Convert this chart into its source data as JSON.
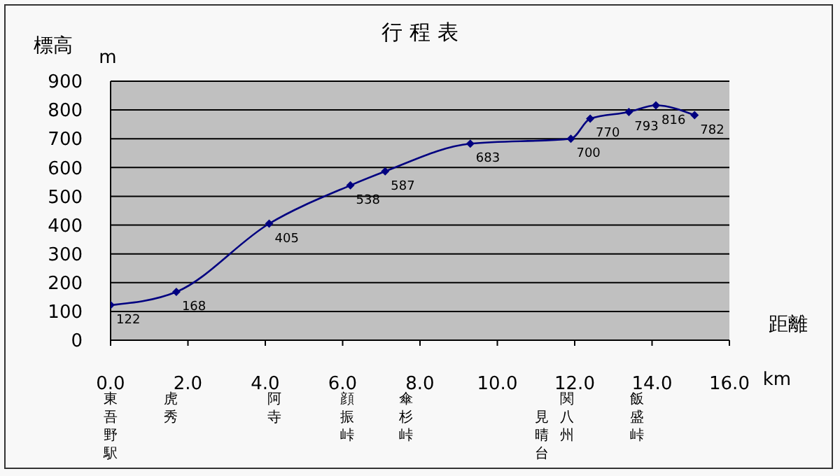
{
  "chart_data": {
    "type": "line",
    "title": "行 程 表",
    "xlabel": "距離",
    "ylabel": "標高",
    "x": [
      0,
      1.7,
      4.1,
      6.2,
      7.1,
      9.3,
      11.9,
      12.4,
      13.4,
      14.1,
      15.1
    ],
    "series": [
      {
        "color": "#000080",
        "values": [
          122,
          168,
          405,
          538,
          587,
          683,
          700,
          770,
          793,
          816,
          782
        ]
      }
    ],
    "xlim": [
      0,
      16
    ],
    "xticks": [
      {
        "value": 0,
        "label": "0.0"
      },
      {
        "value": 2,
        "label": "2.0"
      },
      {
        "value": 4,
        "label": "4.0"
      },
      {
        "value": 6,
        "label": "6.0"
      },
      {
        "value": 8,
        "label": "8.0"
      },
      {
        "value": 10,
        "label": "10.0"
      },
      {
        "value": 12,
        "label": "12.0"
      },
      {
        "value": 14,
        "label": "14.0"
      },
      {
        "value": 16,
        "label": "16.0"
      }
    ],
    "ylim": [
      0,
      900
    ],
    "yticks": [
      0,
      100,
      200,
      300,
      400,
      500,
      600,
      700,
      800,
      900
    ],
    "grid": "y",
    "marker": "diamond",
    "data_labels": true,
    "annotations": [
      "m",
      "km",
      "東吾野駅",
      "虎秀",
      "阿寺",
      "顔振峠",
      "傘杉峠",
      "見晴台",
      "関八州",
      "飯盛峠"
    ]
  }
}
